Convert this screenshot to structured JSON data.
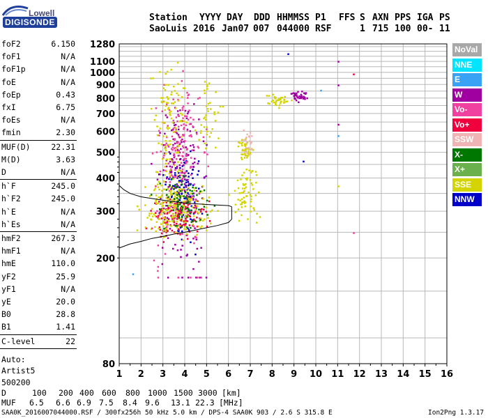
{
  "logo": {
    "line1": "Lowell",
    "line2": "DIGISONDE"
  },
  "header": {
    "labels": [
      "Station",
      "YYYY",
      "DAY",
      "DDD",
      "HHMMSS",
      "P1",
      "FFS",
      "S",
      "AXN",
      "PPS",
      "IGA",
      "PS"
    ],
    "values": [
      "SaoLuis",
      "2016",
      "Jan07",
      "007",
      "044000",
      "RSF",
      "",
      "1",
      "715",
      "100",
      "00-",
      "11"
    ]
  },
  "params": {
    "group1": [
      {
        "name": "foF2",
        "value": "6.150"
      },
      {
        "name": "foF1",
        "value": "N/A"
      },
      {
        "name": "foF1p",
        "value": "N/A"
      },
      {
        "name": "foE",
        "value": "N/A"
      },
      {
        "name": "foEp",
        "value": "0.43"
      },
      {
        "name": "fxI",
        "value": "6.75"
      },
      {
        "name": "foEs",
        "value": "N/A"
      },
      {
        "name": "fmin",
        "value": "2.30"
      }
    ],
    "group2": [
      {
        "name": "MUF(D)",
        "value": "22.31"
      },
      {
        "name": "M(D)",
        "value": "3.63"
      },
      {
        "name": "D",
        "value": "N/A"
      }
    ],
    "group3": [
      {
        "name": "h`F",
        "value": "245.0"
      },
      {
        "name": "h`F2",
        "value": "245.0"
      },
      {
        "name": "h`E",
        "value": "N/A"
      },
      {
        "name": "h`Es",
        "value": "N/A"
      }
    ],
    "group4": [
      {
        "name": "hmF2",
        "value": "267.3"
      },
      {
        "name": "hmF1",
        "value": "N/A"
      },
      {
        "name": "hmE",
        "value": "110.0"
      },
      {
        "name": "yF2",
        "value": "25.9"
      },
      {
        "name": "yF1",
        "value": "N/A"
      },
      {
        "name": "yE",
        "value": "20.0"
      },
      {
        "name": "B0",
        "value": "28.8"
      },
      {
        "name": "B1",
        "value": "1.41"
      }
    ],
    "group5": [
      {
        "name": "C-level",
        "value": "22"
      }
    ],
    "auto": [
      "Auto:",
      "Artist5",
      "500200"
    ]
  },
  "legend": [
    {
      "label": "NoVal",
      "color": "#a8a8a8"
    },
    {
      "label": "NNE",
      "color": "#00e5ff"
    },
    {
      "label": "E",
      "color": "#3aa2f5"
    },
    {
      "label": "W",
      "color": "#a000a0"
    },
    {
      "label": "Vo-",
      "color": "#f040a0"
    },
    {
      "label": "Vo+",
      "color": "#f0003c"
    },
    {
      "label": "SSW",
      "color": "#f0b4b4"
    },
    {
      "label": "X-",
      "color": "#007800"
    },
    {
      "label": "X+",
      "color": "#6ab04c"
    },
    {
      "label": "SSE",
      "color": "#d4d400"
    },
    {
      "label": "NNW",
      "color": "#0000c8"
    }
  ],
  "bottom": {
    "d_label": "D",
    "d_values": [
      "100",
      "200",
      "400",
      "600",
      "800",
      "1000",
      "1500",
      "3000"
    ],
    "d_unit": "[km]",
    "muf_label": "MUF",
    "muf_values": [
      "6.5",
      "6.6",
      "6.9",
      "7.5",
      "8.4",
      "9.6",
      "13.1",
      "22.3"
    ],
    "muf_unit": "[MHz]"
  },
  "footer": {
    "left": "SAA0K_2016007044000.RSF / 300fx256h 50 kHz 5.0 km / DPS-4 SAA0K 903 / 2.6 S 315.8 E",
    "right": "Ion2Png 1.3.17"
  },
  "chart_data": {
    "type": "scatter",
    "xlim": [
      1,
      16
    ],
    "ylim": [
      80,
      1280
    ],
    "x_ticks": [
      1,
      2,
      3,
      4,
      5,
      6,
      7,
      8,
      9,
      10,
      11,
      12,
      13,
      14,
      15,
      16
    ],
    "y_ticks": [
      80,
      200,
      300,
      400,
      500,
      600,
      700,
      800,
      900,
      1000,
      1100,
      1280
    ],
    "y_scale": "log",
    "grid": true,
    "legend_position": "right",
    "trace": {
      "name": "hF profile",
      "x": [
        1.0,
        1.5,
        2.0,
        2.5,
        3.0,
        3.5,
        4.0,
        4.5,
        5.0,
        5.5,
        6.0,
        6.15
      ],
      "y": [
        218,
        226,
        231,
        237,
        241,
        246,
        250,
        255,
        260,
        265,
        272,
        280
      ]
    },
    "trace_upper": {
      "x": [
        1.0,
        1.2,
        1.5,
        2.0,
        3.0,
        4.0,
        5.0,
        6.0,
        6.15
      ],
      "y": [
        375,
        362,
        350,
        340,
        330,
        322,
        318,
        315,
        312
      ]
    },
    "clusters": [
      {
        "series": "NNW",
        "xc": 3.9,
        "xs": 0.7,
        "yc": 360,
        "ys": 60,
        "n": 120
      },
      {
        "series": "W",
        "xc": 3.8,
        "xs": 0.9,
        "yc": 420,
        "ys": 140,
        "n": 180
      },
      {
        "series": "Vo+",
        "xc": 3.6,
        "xs": 1.0,
        "yc": 290,
        "ys": 25,
        "n": 160
      },
      {
        "series": "SSE",
        "xc": 3.6,
        "xs": 1.2,
        "yc": 310,
        "ys": 40,
        "n": 200
      },
      {
        "series": "Vo-",
        "xc": 3.8,
        "xs": 1.0,
        "yc": 520,
        "ys": 170,
        "n": 160
      },
      {
        "series": "SSE",
        "xc": 3.3,
        "xs": 0.6,
        "yc": 650,
        "ys": 180,
        "n": 120
      },
      {
        "series": "X-",
        "xc": 3.8,
        "xs": 0.9,
        "yc": 330,
        "ys": 40,
        "n": 80
      },
      {
        "series": "SSE",
        "xc": 6.8,
        "xs": 0.5,
        "yc": 360,
        "ys": 40,
        "n": 70
      },
      {
        "series": "SSE",
        "xc": 6.7,
        "xs": 0.3,
        "yc": 520,
        "ys": 30,
        "n": 40
      },
      {
        "series": "SSW",
        "xc": 6.9,
        "xs": 0.2,
        "yc": 550,
        "ys": 30,
        "n": 20
      },
      {
        "series": "SSE",
        "xc": 8.2,
        "xs": 0.4,
        "yc": 790,
        "ys": 20,
        "n": 40
      },
      {
        "series": "W",
        "xc": 9.2,
        "xs": 0.4,
        "yc": 820,
        "ys": 20,
        "n": 40
      },
      {
        "series": "SSE",
        "xc": 5.1,
        "xs": 0.5,
        "yc": 720,
        "ys": 120,
        "n": 40
      }
    ]
  }
}
